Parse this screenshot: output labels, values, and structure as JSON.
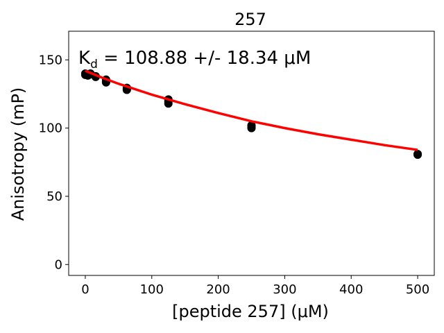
{
  "chart_data": {
    "type": "scatter",
    "title": "257",
    "xlabel": "[peptide 257] (μM)",
    "ylabel": "Anisotropy (mP)",
    "annotation": {
      "k": "K",
      "sub": "d",
      "rest": " = 108.88 +/- 18.34 μM"
    },
    "xlim": [
      -25,
      525
    ],
    "ylim": [
      -8,
      171
    ],
    "xticks": [
      0,
      100,
      200,
      300,
      400,
      500
    ],
    "yticks": [
      0,
      50,
      100,
      150
    ],
    "grid": false,
    "point_color": "#000000",
    "fit_color": "#ff0000",
    "series": [
      {
        "kind": "points",
        "x": [
          0,
          0,
          0,
          3.9,
          3.9,
          7.8,
          7.8,
          15.6,
          15.6,
          31.25,
          31.25,
          31.25,
          62.5,
          62.5,
          62.5,
          125,
          125,
          125,
          250,
          250,
          250,
          500,
          500
        ],
        "y": [
          139.5,
          139.0,
          140.0,
          139.0,
          138.5,
          139.5,
          140.0,
          137.5,
          138.0,
          134.0,
          135.5,
          133.5,
          128.0,
          129.5,
          128.5,
          118.0,
          121.0,
          119.5,
          100.0,
          102.0,
          101.0,
          81.0,
          80.5
        ]
      },
      {
        "kind": "fit",
        "x": [
          0,
          25,
          50,
          100,
          150,
          200,
          250,
          300,
          350,
          400,
          450,
          500
        ],
        "y": [
          142.0,
          137.0,
          132.5,
          124.5,
          117.5,
          111.0,
          105.0,
          100.0,
          95.5,
          91.5,
          87.5,
          84.0
        ]
      }
    ]
  }
}
